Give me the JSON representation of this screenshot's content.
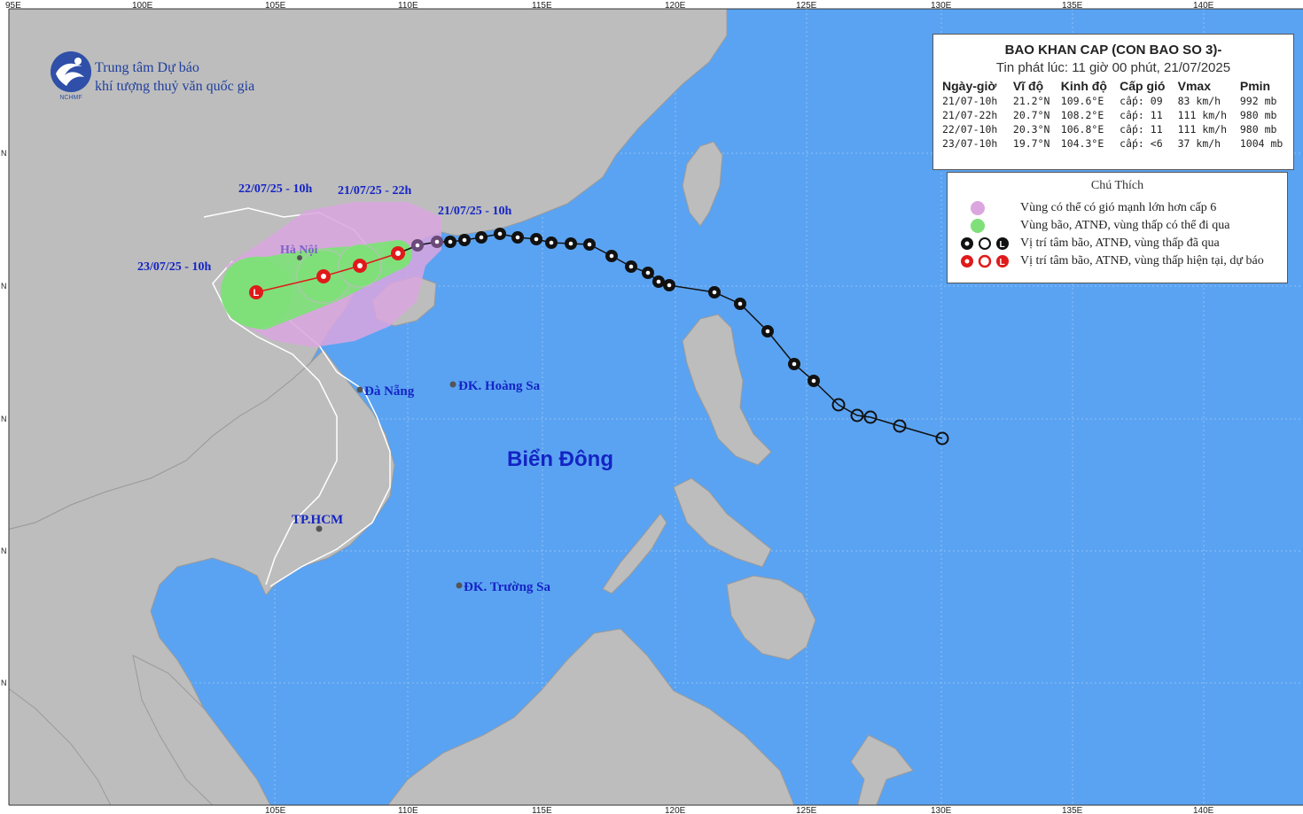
{
  "map": {
    "top_axis_labels": [
      "95E",
      "100E",
      "105E",
      "110E",
      "115E",
      "120E",
      "125E",
      "130E",
      "135E",
      "140E"
    ],
    "bottom_axis_labels": [
      "105E",
      "110E",
      "115E",
      "120E",
      "125E",
      "130E",
      "135E",
      "140E"
    ],
    "left_axis_labels": [
      "N",
      "N",
      "N",
      "N",
      "N"
    ],
    "sea_label": "Biển Đông",
    "places": {
      "hanoi": "Hà Nội",
      "danang": "Đà Nẵng",
      "hoangsa": "ĐK. Hoàng Sa",
      "hcm": "TP.HCM",
      "truongsa": "ĐK. Trường Sa"
    },
    "track_labels": {
      "t1": "21/07/25 - 10h",
      "t2": "21/07/25 - 22h",
      "t3": "22/07/25 - 10h",
      "t4": "23/07/25 - 10h"
    },
    "colors": {
      "sea": "#5aa3f2",
      "land": "#bdbdbd",
      "wind_zone": "#dba6e0",
      "storm_zone": "#7fe07a",
      "forecast_marker": "#e01a1a"
    }
  },
  "logo": {
    "line1": "Trung tâm Dự báo",
    "line2": "khí tượng thuỷ văn quốc gia",
    "abbr": "NCHMF"
  },
  "bulletin": {
    "title": "BAO KHAN CAP (CON BAO SO 3)-",
    "issued": "Tin phát lúc: 11 giờ 00 phút, 21/07/2025",
    "headers": [
      "Ngày-giờ",
      "Vĩ độ",
      "Kinh độ",
      "Cấp gió",
      "Vmax",
      "Pmin"
    ],
    "rows": [
      [
        "21/07-10h",
        "21.2°N",
        "109.6°E",
        "cấp: 09",
        "83 km/h",
        "992 mb"
      ],
      [
        "21/07-22h",
        "20.7°N",
        "108.2°E",
        "cấp: 11",
        "111 km/h",
        "980 mb"
      ],
      [
        "22/07-10h",
        "20.3°N",
        "106.8°E",
        "cấp: 11",
        "111 km/h",
        "980 mb"
      ],
      [
        "23/07-10h",
        "19.7°N",
        "104.3°E",
        "cấp: <6",
        "37 km/h",
        "1004 mb"
      ]
    ]
  },
  "legend": {
    "title": "Chú Thích",
    "items": [
      "Vùng có thể có gió mạnh lớn hơn cấp 6",
      "Vùng bão, ATNĐ, vùng thấp có thể đi qua",
      "Vị trí tâm bão, ATNĐ, vùng thấp đã qua",
      "Vị trí tâm bão, ATNĐ, vùng thấp hiện tại, dự báo"
    ]
  }
}
